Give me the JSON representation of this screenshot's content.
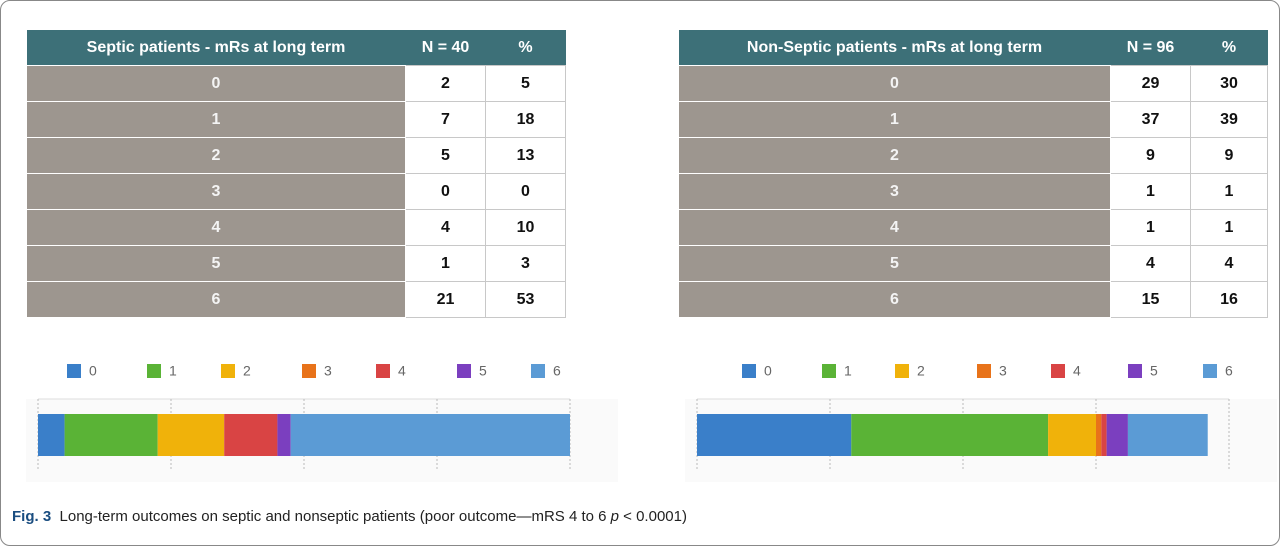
{
  "tables": [
    {
      "header": [
        "Septic patients - mRs at long term",
        "N = 40",
        "%"
      ],
      "rows": [
        [
          "0",
          "2",
          "5"
        ],
        [
          "1",
          "7",
          "18"
        ],
        [
          "2",
          "5",
          "13"
        ],
        [
          "3",
          "0",
          "0"
        ],
        [
          "4",
          "4",
          "10"
        ],
        [
          "5",
          "1",
          "3"
        ],
        [
          "6",
          "21",
          "53"
        ]
      ]
    },
    {
      "header": [
        "Non-Septic patients - mRs at long term",
        "N = 96",
        "%"
      ],
      "rows": [
        [
          "0",
          "29",
          "30"
        ],
        [
          "1",
          "37",
          "39"
        ],
        [
          "2",
          "9",
          "9"
        ],
        [
          "3",
          "1",
          "1"
        ],
        [
          "4",
          "1",
          "1"
        ],
        [
          "5",
          "4",
          "4"
        ],
        [
          "6",
          "15",
          "16"
        ]
      ]
    }
  ],
  "chart_data": [
    {
      "type": "stacked-bar",
      "xlim": [
        0,
        40
      ],
      "xticks": [
        0,
        10,
        20,
        30,
        40
      ],
      "grid": true,
      "series": [
        {
          "name": "0",
          "color": "#3a7fc9",
          "values": [
            2
          ]
        },
        {
          "name": "1",
          "color": "#5ab336",
          "values": [
            7
          ]
        },
        {
          "name": "2",
          "color": "#f0b20a",
          "values": [
            5
          ]
        },
        {
          "name": "3",
          "color": "#e8731a",
          "values": [
            0
          ]
        },
        {
          "name": "4",
          "color": "#d94444",
          "values": [
            4
          ]
        },
        {
          "name": "5",
          "color": "#7b3fbf",
          "values": [
            1
          ]
        },
        {
          "name": "6",
          "color": "#5b9bd5",
          "values": [
            21
          ]
        }
      ]
    },
    {
      "type": "stacked-bar",
      "xlim": [
        0,
        100
      ],
      "xticks": [
        0,
        25,
        50,
        75,
        100
      ],
      "grid": true,
      "series": [
        {
          "name": "0",
          "color": "#3a7fc9",
          "values": [
            29
          ]
        },
        {
          "name": "1",
          "color": "#5ab336",
          "values": [
            37
          ]
        },
        {
          "name": "2",
          "color": "#f0b20a",
          "values": [
            9
          ]
        },
        {
          "name": "3",
          "color": "#e8731a",
          "values": [
            1
          ]
        },
        {
          "name": "4",
          "color": "#d94444",
          "values": [
            1
          ]
        },
        {
          "name": "5",
          "color": "#7b3fbf",
          "values": [
            4
          ]
        },
        {
          "name": "6",
          "color": "#5b9bd5",
          "values": [
            15
          ]
        }
      ]
    }
  ],
  "caption": {
    "label": "Fig. 3",
    "text": "Long-term outcomes on septic and nonseptic patients (poor outcome—mRS 4 to 6 ",
    "p": "p",
    "rest": " < 0.0001)"
  }
}
